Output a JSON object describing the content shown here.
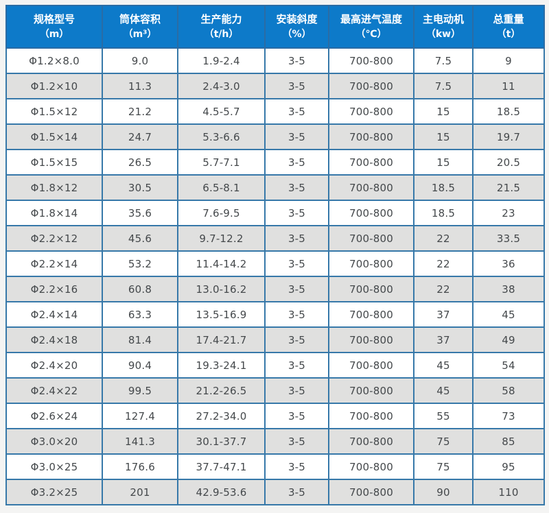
{
  "colors": {
    "page_background": "#f4f4f3",
    "header_background": "#0d7ac9",
    "header_text": "#ffffff",
    "grid_border": "#3678a9",
    "outer_border": "#2a6ca5",
    "row_background": "#ffffff",
    "row_alt_background": "#e0e0df",
    "cell_text": "#44484b"
  },
  "table": {
    "columns": [
      {
        "title": "规格型号",
        "unit": "（m）"
      },
      {
        "title": "筒体容积",
        "unit": "（m³）"
      },
      {
        "title": "生产能力",
        "unit": "（t/h）"
      },
      {
        "title": "安装斜度",
        "unit": "（%）"
      },
      {
        "title": "最高进气温度",
        "unit": "（℃）"
      },
      {
        "title": "主电动机",
        "unit": "（kw）"
      },
      {
        "title": "总重量",
        "unit": "（t）"
      }
    ],
    "rows": [
      [
        "Φ1.2×8.0",
        "9.0",
        "1.9-2.4",
        "3-5",
        "700-800",
        "7.5",
        "9"
      ],
      [
        "Φ1.2×10",
        "11.3",
        "2.4-3.0",
        "3-5",
        "700-800",
        "7.5",
        "11"
      ],
      [
        "Φ1.5×12",
        "21.2",
        "4.5-5.7",
        "3-5",
        "700-800",
        "15",
        "18.5"
      ],
      [
        "Φ1.5×14",
        "24.7",
        "5.3-6.6",
        "3-5",
        "700-800",
        "15",
        "19.7"
      ],
      [
        "Φ1.5×15",
        "26.5",
        "5.7-7.1",
        "3-5",
        "700-800",
        "15",
        "20.5"
      ],
      [
        "Φ1.8×12",
        "30.5",
        "6.5-8.1",
        "3-5",
        "700-800",
        "18.5",
        "21.5"
      ],
      [
        "Φ1.8×14",
        "35.6",
        "7.6-9.5",
        "3-5",
        "700-800",
        "18.5",
        "23"
      ],
      [
        "Φ2.2×12",
        "45.6",
        "9.7-12.2",
        "3-5",
        "700-800",
        "22",
        "33.5"
      ],
      [
        "Φ2.2×14",
        "53.2",
        "11.4-14.2",
        "3-5",
        "700-800",
        "22",
        "36"
      ],
      [
        "Φ2.2×16",
        "60.8",
        "13.0-16.2",
        "3-5",
        "700-800",
        "22",
        "38"
      ],
      [
        "Φ2.4×14",
        "63.3",
        "13.5-16.9",
        "3-5",
        "700-800",
        "37",
        "45"
      ],
      [
        "Φ2.4×18",
        "81.4",
        "17.4-21.7",
        "3-5",
        "700-800",
        "37",
        "49"
      ],
      [
        "Φ2.4×20",
        "90.4",
        "19.3-24.1",
        "3-5",
        "700-800",
        "45",
        "54"
      ],
      [
        "Φ2.4×22",
        "99.5",
        "21.2-26.5",
        "3-5",
        "700-800",
        "45",
        "58"
      ],
      [
        "Φ2.6×24",
        "127.4",
        "27.2-34.0",
        "3-5",
        "700-800",
        "55",
        "73"
      ],
      [
        "Φ3.0×20",
        "141.3",
        "30.1-37.7",
        "3-5",
        "700-800",
        "75",
        "85"
      ],
      [
        "Φ3.0×25",
        "176.6",
        "37.7-47.1",
        "3-5",
        "700-800",
        "75",
        "95"
      ],
      [
        "Φ3.2×25",
        "201",
        "42.9-53.6",
        "3-5",
        "700-800",
        "90",
        "110"
      ]
    ]
  }
}
